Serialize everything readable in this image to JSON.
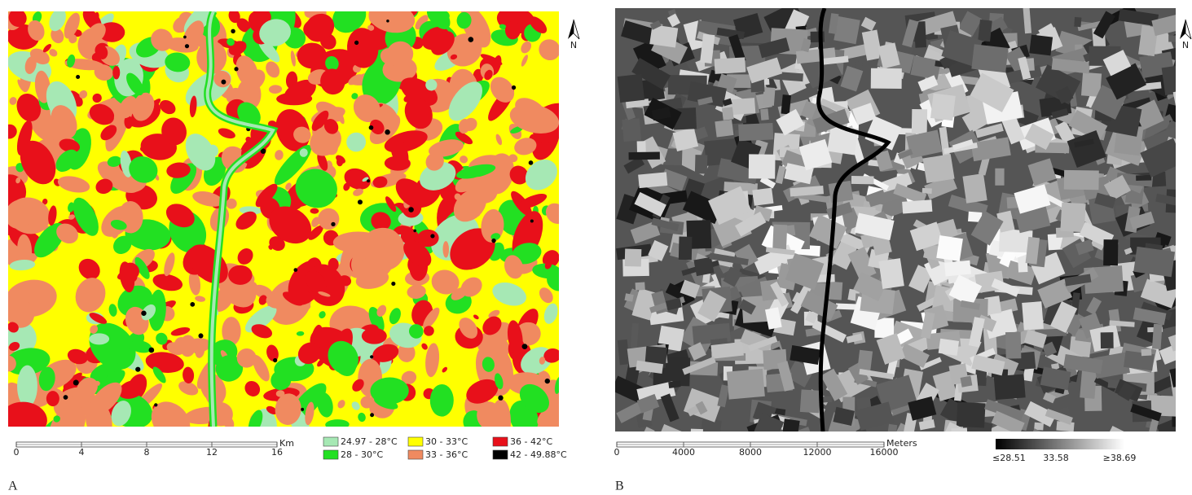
{
  "panels": [
    {
      "label": "A",
      "north": "N",
      "scale_bar": {
        "ticks": [
          "0",
          "4",
          "8",
          "12",
          "16"
        ],
        "unit": "Km"
      },
      "legend": [
        {
          "label": "24.97 - 28°C",
          "color": "#a6e8b4"
        },
        {
          "label": "30 - 33°C",
          "color": "#ffff00"
        },
        {
          "label": "36 - 42°C",
          "color": "#e8101a"
        },
        {
          "label": "28 - 30°C",
          "color": "#22e022"
        },
        {
          "label": "33 - 36°C",
          "color": "#f08a60"
        },
        {
          "label": "42 - 49.88°C",
          "color": "#000000"
        }
      ]
    },
    {
      "label": "B",
      "north": "N",
      "scale_bar": {
        "ticks": [
          "0",
          "4000",
          "8000",
          "12000",
          "16000"
        ],
        "unit": "Meters"
      },
      "colorbar": {
        "labels": [
          "≤28.51",
          "33.58",
          "≥38.69"
        ]
      }
    }
  ]
}
